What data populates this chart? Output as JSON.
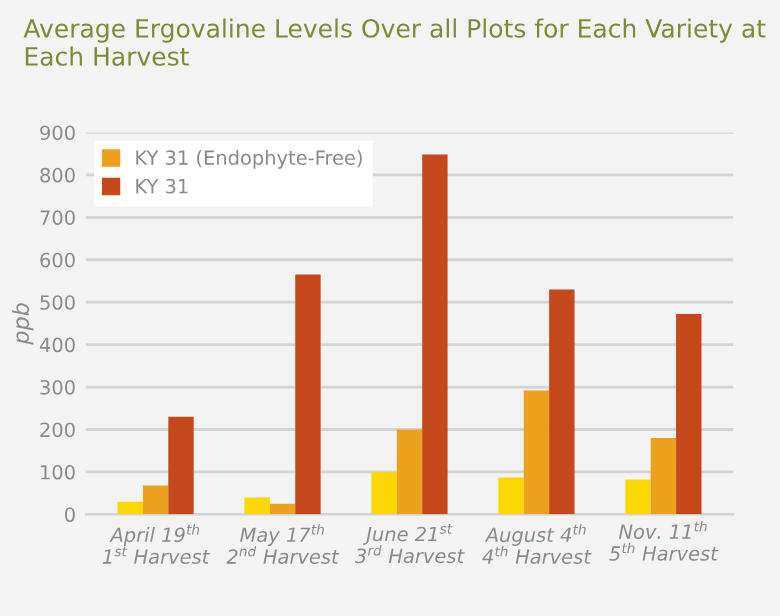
{
  "chart_data": {
    "type": "bar",
    "title": "Average Ergovaline Levels Over all Plots for Each Variety at Each Harvest",
    "ylabel": "ppb",
    "categories": [
      "April 19$^{th}$\n1$^{st}$ Harvest",
      "May 17$^{th}$\n2$^{nd}$ Harvest",
      "June 21$^{st}$\n3$^{rd}$ Harvest",
      "August 4$^{th}$\n4$^{th}$ Harvest",
      "Nov. 11$^{th}$\n5$^{th}$ Harvest"
    ],
    "series": [
      {
        "color": "#fcd800",
        "values": [
          30,
          40,
          100,
          87,
          82
        ]
      },
      {
        "name": "KY 31 (Endophyte-Free)",
        "color": "#eca11f",
        "values": [
          68,
          25,
          200,
          292,
          180
        ]
      },
      {
        "name": "KY 31",
        "color": "#c44819",
        "values": [
          230,
          565,
          848,
          530,
          472
        ]
      }
    ],
    "ylim": [
      0,
      900
    ],
    "yticks": [
      0,
      100,
      200,
      300,
      400,
      500,
      600,
      700,
      800,
      900
    ],
    "grid": "y",
    "legend": "top left"
  }
}
